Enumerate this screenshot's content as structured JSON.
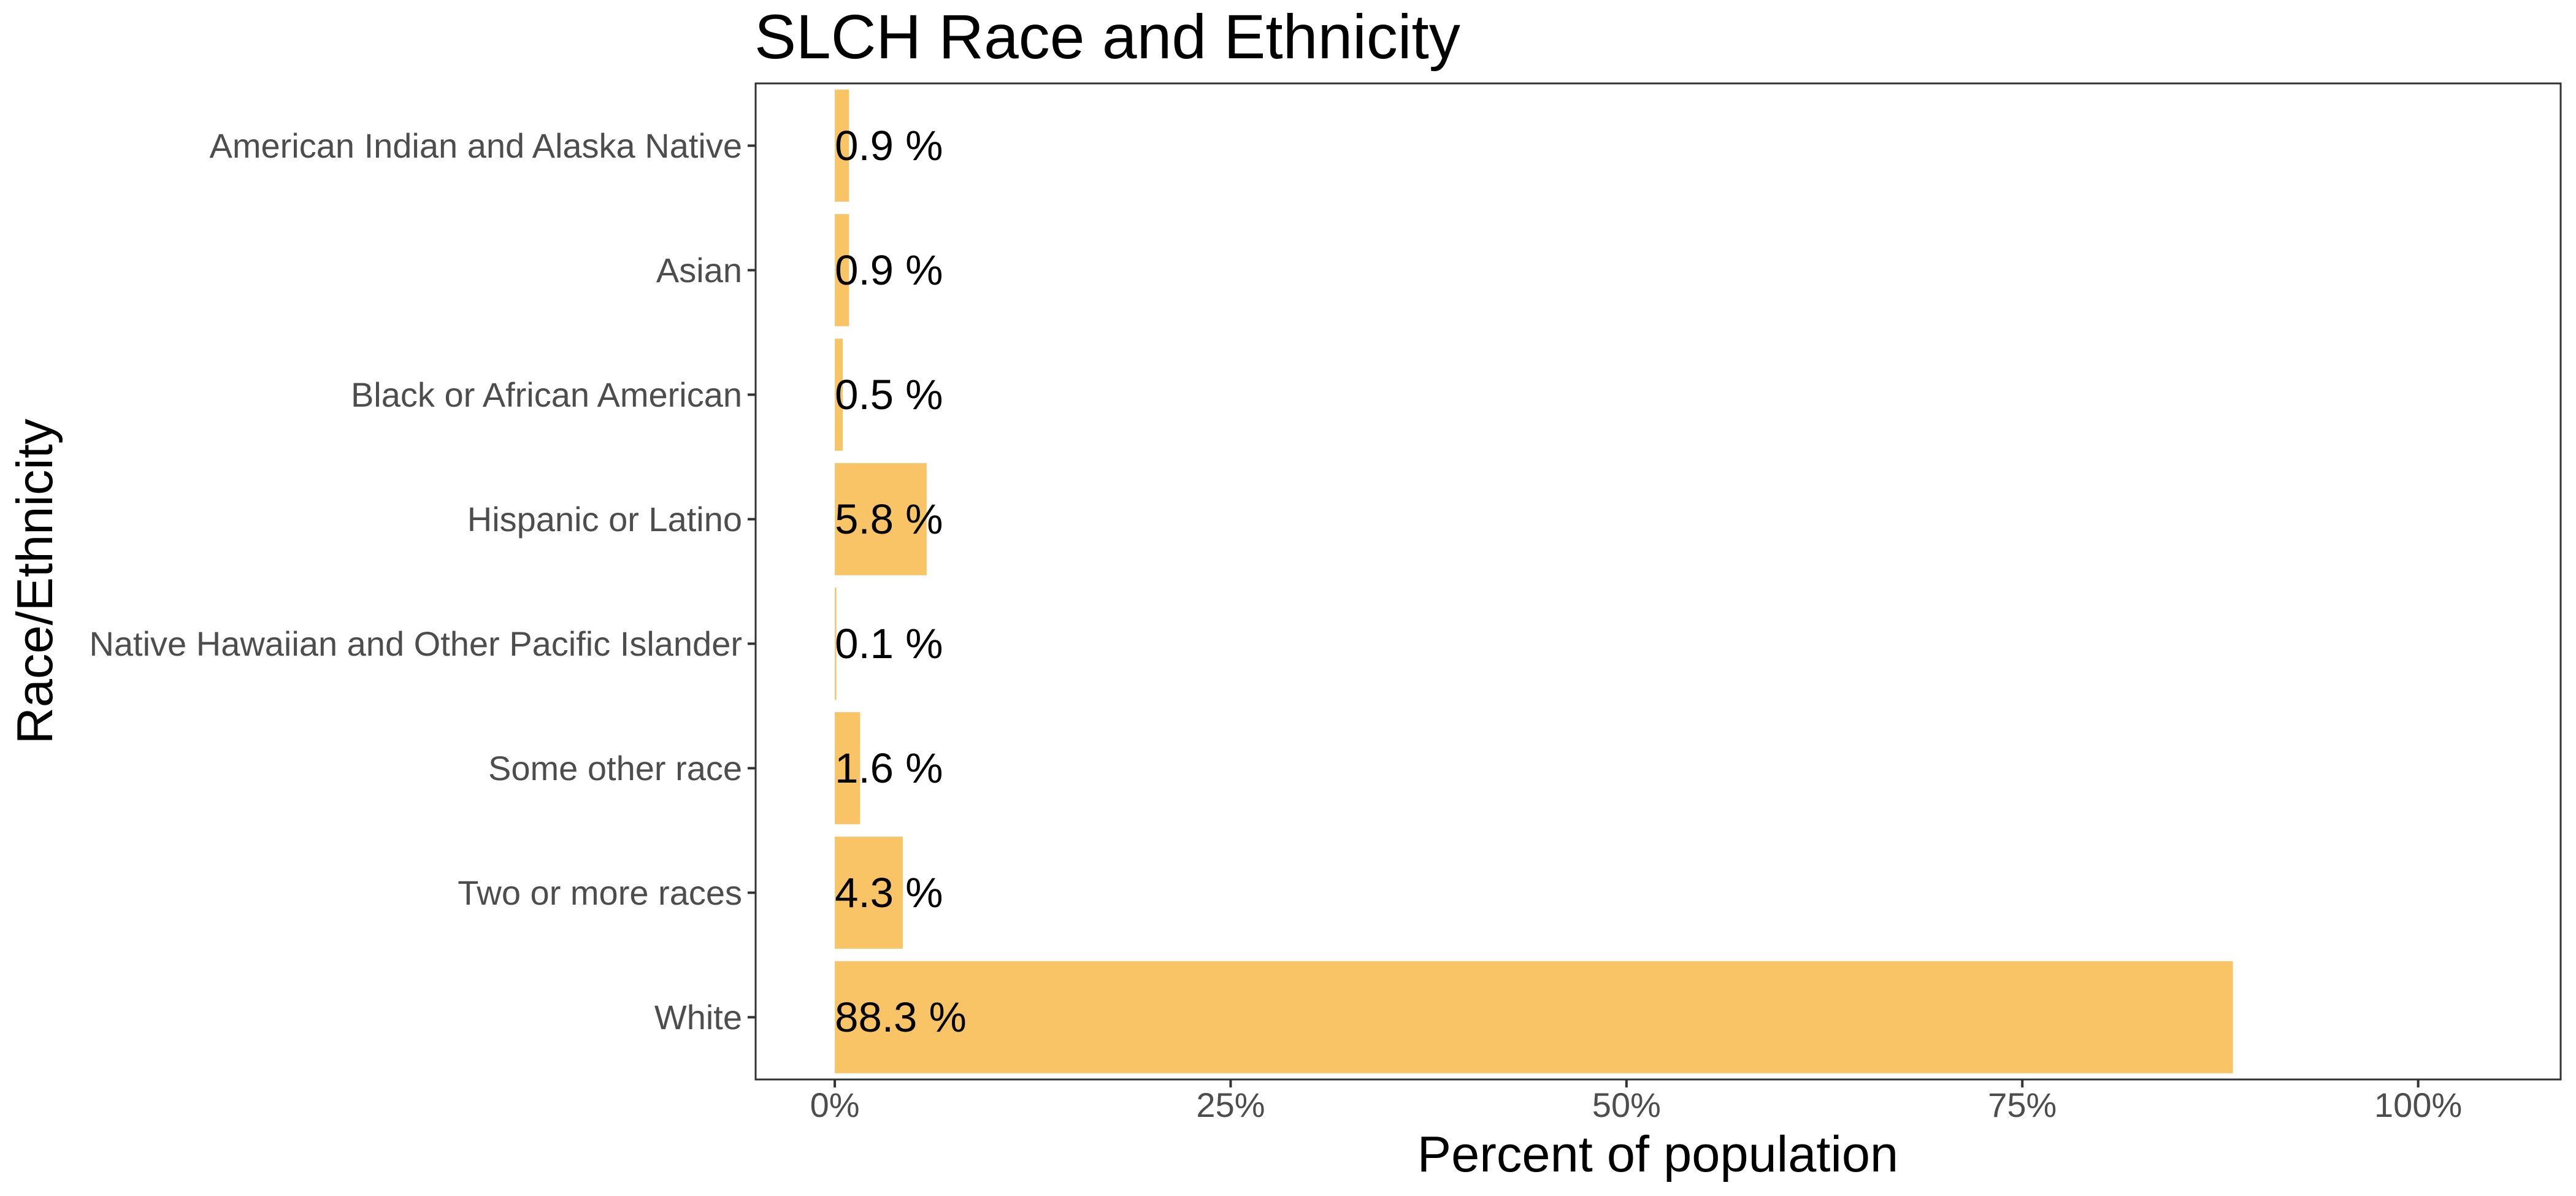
{
  "chart_data": {
    "type": "bar",
    "orientation": "horizontal",
    "title": "SLCH Race and Ethnicity",
    "xlabel": "Percent of population",
    "ylabel": "Race/Ethnicity",
    "categories": [
      "American Indian and Alaska Native",
      "Asian",
      "Black or African American",
      "Hispanic or Latino",
      "Native Hawaiian and Other Pacific Islander",
      "Some other race",
      "Two or more races",
      "White"
    ],
    "values": [
      0.9,
      0.9,
      0.5,
      5.8,
      0.1,
      1.6,
      4.3,
      88.3
    ],
    "value_labels": [
      "0.9 %",
      "0.9 %",
      "0.5 %",
      "5.8 %",
      "0.1 %",
      "1.6 %",
      "4.3 %",
      "88.3 %"
    ],
    "x_ticks": [
      0,
      25,
      50,
      75,
      100
    ],
    "x_tick_labels": [
      "0%",
      "25%",
      "50%",
      "75%",
      "100%"
    ],
    "xlim": [
      -5,
      109
    ],
    "grid": false,
    "legend": "none",
    "bar_color": "#F9C466"
  }
}
